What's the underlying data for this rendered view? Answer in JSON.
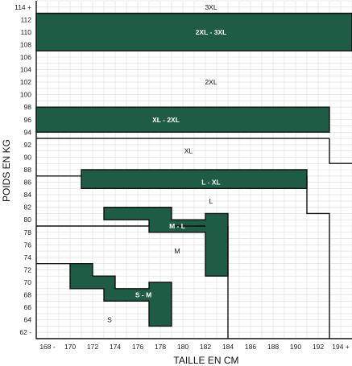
{
  "chart_data": {
    "type": "heatmap",
    "title": "",
    "xlabel": "TAILLE EN CM",
    "ylabel": "POIDS EN KG",
    "x_ticks": [
      "168 -",
      "170",
      "172",
      "174",
      "176",
      "178",
      "180",
      "182",
      "184",
      "186",
      "188",
      "190",
      "192",
      "194 +"
    ],
    "y_ticks": [
      "62 -",
      "64",
      "66",
      "68",
      "70",
      "72",
      "74",
      "76",
      "78",
      "80",
      "82",
      "84",
      "86",
      "88",
      "90",
      "92",
      "94",
      "96",
      "98",
      "100",
      "102",
      "104",
      "106",
      "108",
      "110",
      "112",
      "114 +"
    ],
    "xlim": [
      167,
      195
    ],
    "ylim": [
      61,
      115
    ],
    "grid": true,
    "size_zones": [
      {
        "label": "S",
        "x": 173.5,
        "y": 64
      },
      {
        "label": "M",
        "x": 179.5,
        "y": 75
      },
      {
        "label": "L",
        "x": 182.5,
        "y": 83
      },
      {
        "label": "XL",
        "x": 180.5,
        "y": 91
      },
      {
        "label": "2XL",
        "x": 182.5,
        "y": 102
      },
      {
        "label": "3XL",
        "x": 182.5,
        "y": 114
      }
    ],
    "overlap_bands": [
      {
        "label": "S - M",
        "label_at": [
          176.5,
          68
        ],
        "polygon": [
          [
            170,
            73
          ],
          [
            172,
            73
          ],
          [
            172,
            71
          ],
          [
            174,
            71
          ],
          [
            174,
            69
          ],
          [
            177,
            69
          ],
          [
            177,
            70
          ],
          [
            179,
            70
          ],
          [
            179,
            63
          ],
          [
            177,
            63
          ],
          [
            177,
            67
          ],
          [
            173,
            67
          ],
          [
            173,
            69
          ],
          [
            170,
            69
          ]
        ]
      },
      {
        "label": "M - L",
        "label_at": [
          179.5,
          79
        ],
        "polygon": [
          [
            173,
            82
          ],
          [
            179,
            82
          ],
          [
            179,
            80
          ],
          [
            182,
            80
          ],
          [
            182,
            81
          ],
          [
            184,
            81
          ],
          [
            184,
            71
          ],
          [
            182,
            71
          ],
          [
            182,
            78
          ],
          [
            177,
            78
          ],
          [
            177,
            80
          ],
          [
            173,
            80
          ]
        ]
      },
      {
        "label": "L - XL",
        "label_at": [
          182.5,
          86
        ],
        "polygon": [
          [
            171,
            88
          ],
          [
            191,
            88
          ],
          [
            191,
            85
          ],
          [
            171,
            85
          ]
        ]
      },
      {
        "label": "XL - 2XL",
        "label_at": [
          178.5,
          96
        ],
        "polygon": [
          [
            167,
            98
          ],
          [
            193,
            98
          ],
          [
            193,
            94
          ],
          [
            167,
            94
          ]
        ]
      },
      {
        "label": "2XL - 3XL",
        "label_at": [
          182.5,
          110
        ],
        "polygon": [
          [
            167,
            113
          ],
          [
            195,
            113
          ],
          [
            195,
            107
          ],
          [
            167,
            107
          ]
        ]
      }
    ],
    "boundaries": [
      [
        [
          167,
          73
        ],
        [
          170,
          73
        ]
      ],
      [
        [
          167,
          79
        ],
        [
          177,
          79
        ]
      ],
      [
        [
          179,
          79
        ],
        [
          182,
          79
        ]
      ],
      [
        [
          184,
          79
        ],
        [
          184,
          61
        ]
      ],
      [
        [
          181,
          79
        ],
        [
          182,
          79
        ]
      ],
      [
        [
          167,
          87
        ],
        [
          171,
          87
        ]
      ],
      [
        [
          191,
          87
        ],
        [
          191,
          81
        ],
        [
          193,
          81
        ],
        [
          193,
          61
        ]
      ],
      [
        [
          167,
          93
        ],
        [
          193,
          93
        ]
      ],
      [
        [
          193,
          93
        ],
        [
          193,
          89
        ],
        [
          195,
          89
        ]
      ],
      [
        [
          167,
          113
        ],
        [
          195,
          113
        ]
      ]
    ],
    "colors": {
      "band": "#1f5c46",
      "band_text": "#ffffff",
      "grid": "#d9d9d9",
      "boundary": "#111111"
    }
  }
}
